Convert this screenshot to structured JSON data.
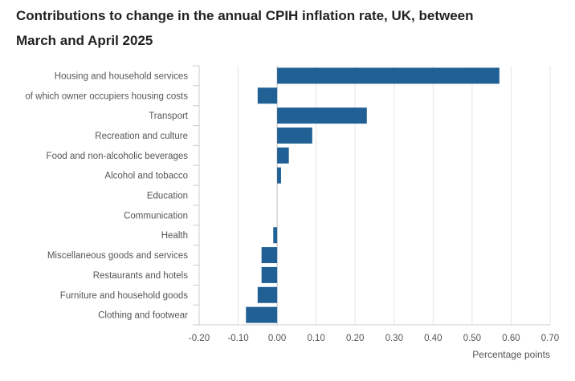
{
  "chart_data": {
    "type": "bar",
    "orientation": "horizontal",
    "title": "Contributions to change in the annual CPIH inflation rate, UK, between March and April 2025",
    "xlabel": "Percentage points",
    "ylabel": "",
    "xlim": [
      -0.2,
      0.7
    ],
    "xticks": [
      "-0.20",
      "-0.10",
      "0.00",
      "0.10",
      "0.20",
      "0.30",
      "0.40",
      "0.50",
      "0.60",
      "0.70"
    ],
    "tick_values": [
      -0.2,
      -0.1,
      0.0,
      0.1,
      0.2,
      0.3,
      0.4,
      0.5,
      0.6,
      0.7
    ],
    "grid": true,
    "bar_color": "#206095",
    "categories": [
      "Housing and household services",
      "of which owner occupiers housing costs",
      "Transport",
      "Recreation and culture",
      "Food and non-alcoholic beverages",
      "Alcohol and tobacco",
      "Education",
      "Communication",
      "Health",
      "Miscellaneous goods and services",
      "Restaurants and hotels",
      "Furniture and household goods",
      "Clothing and footwear"
    ],
    "values": [
      0.57,
      -0.05,
      0.23,
      0.09,
      0.03,
      0.01,
      0.0,
      0.0,
      -0.01,
      -0.04,
      -0.04,
      -0.05,
      -0.08
    ]
  }
}
